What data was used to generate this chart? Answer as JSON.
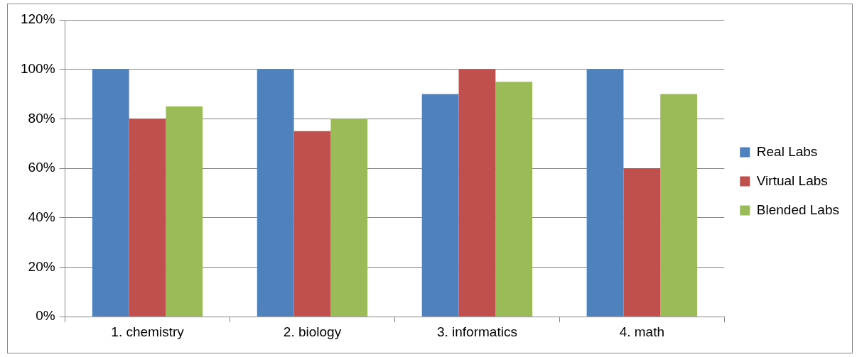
{
  "chart_data": {
    "type": "bar",
    "categories": [
      "1. chemistry",
      "2. biology",
      "3. informatics",
      "4. math"
    ],
    "series": [
      {
        "name": "Real Labs",
        "color": "#4f81bd",
        "values": [
          100,
          100,
          90,
          100
        ]
      },
      {
        "name": "Virtual Labs",
        "color": "#c0504d",
        "values": [
          80,
          75,
          100,
          60
        ]
      },
      {
        "name": "Blended Labs",
        "color": "#9bbb59",
        "values": [
          85,
          80,
          95,
          90
        ]
      }
    ],
    "ylim": [
      0,
      120
    ],
    "yticks": [
      {
        "value": 0,
        "label": "0%"
      },
      {
        "value": 20,
        "label": "20%"
      },
      {
        "value": 40,
        "label": "40%"
      },
      {
        "value": 60,
        "label": "60%"
      },
      {
        "value": 80,
        "label": "80%"
      },
      {
        "value": 100,
        "label": "100%"
      },
      {
        "value": 120,
        "label": "120%"
      }
    ],
    "grid": "y",
    "legend": "right"
  }
}
